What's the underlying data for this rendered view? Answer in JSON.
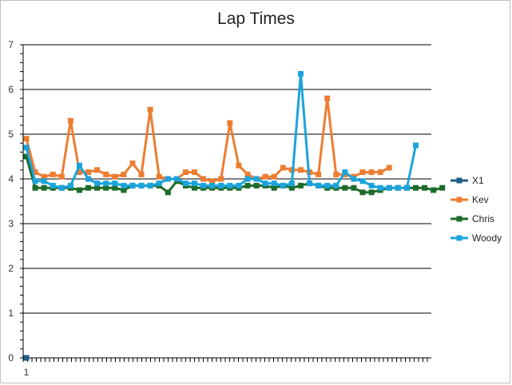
{
  "chart_data": {
    "type": "line",
    "title": "Lap Times",
    "xlabel": "",
    "ylabel": "",
    "ylim": [
      0,
      7
    ],
    "yticks": [
      0,
      1,
      2,
      3,
      4,
      5,
      6,
      7
    ],
    "xlim": [
      1,
      47
    ],
    "x_tick_labels": [
      {
        "x": 1,
        "label": "1"
      }
    ],
    "grid": "horizontal",
    "legend": "right",
    "series": [
      {
        "name": "X1",
        "color": "#1f5f85",
        "values": [
          0
        ]
      },
      {
        "name": "Kev",
        "color": "#ed7d31",
        "values": [
          4.9,
          4.15,
          4.05,
          4.1,
          4.05,
          5.3,
          4.15,
          4.15,
          4.2,
          4.1,
          4.05,
          4.1,
          4.35,
          4.1,
          5.55,
          4.05,
          4.0,
          4.0,
          4.15,
          4.15,
          4.0,
          3.95,
          4.0,
          5.25,
          4.3,
          4.1,
          4.0,
          4.05,
          4.05,
          4.25,
          4.2,
          4.2,
          4.15,
          4.1,
          5.8,
          4.1,
          4.1,
          4.05,
          4.15,
          4.15,
          4.15,
          4.25
        ]
      },
      {
        "name": "Chris",
        "color": "#1e6b2a",
        "values": [
          4.5,
          3.8,
          3.8,
          3.8,
          3.8,
          3.8,
          3.75,
          3.8,
          3.8,
          3.8,
          3.8,
          3.75,
          3.85,
          3.85,
          3.85,
          3.85,
          3.7,
          3.95,
          3.85,
          3.8,
          3.8,
          3.8,
          3.8,
          3.8,
          3.8,
          3.85,
          3.85,
          3.85,
          3.8,
          3.85,
          3.8,
          3.85,
          3.9,
          3.85,
          3.8,
          3.8,
          3.8,
          3.8,
          3.7,
          3.7,
          3.75,
          3.8,
          3.8,
          3.8,
          3.8,
          3.8,
          3.75,
          3.8
        ]
      },
      {
        "name": "Woody",
        "color": "#1ba3dc",
        "values": [
          4.7,
          3.95,
          3.95,
          3.85,
          3.8,
          3.85,
          4.3,
          4.0,
          3.9,
          3.9,
          3.9,
          3.85,
          3.85,
          3.85,
          3.85,
          3.9,
          4.0,
          4.0,
          3.9,
          3.9,
          3.85,
          3.85,
          3.85,
          3.85,
          3.85,
          4.0,
          4.0,
          3.9,
          3.9,
          3.85,
          3.9,
          6.35,
          3.9,
          3.85,
          3.85,
          3.85,
          4.15,
          4.0,
          3.95,
          3.85,
          3.8,
          3.8,
          3.8,
          3.8,
          4.75
        ]
      }
    ]
  }
}
